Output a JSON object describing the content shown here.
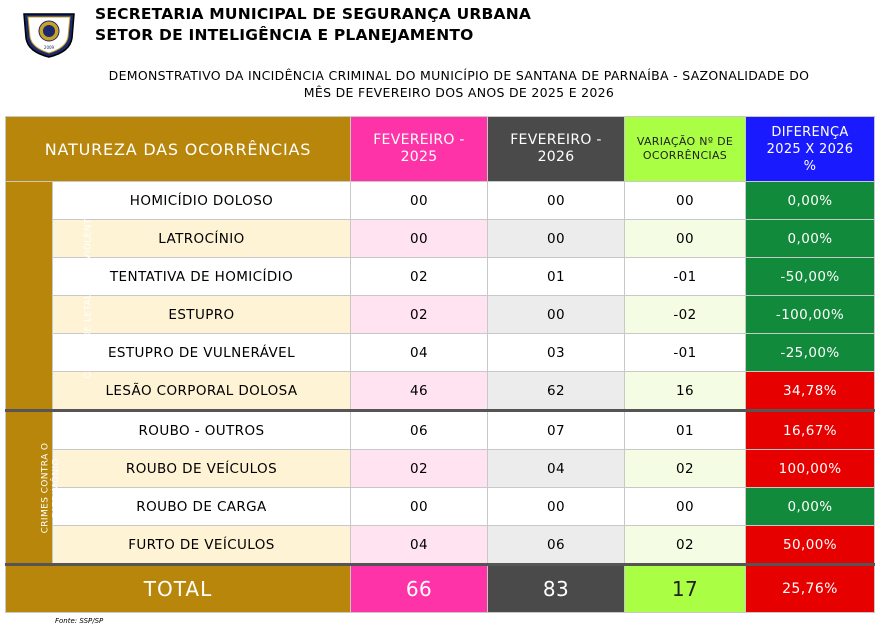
{
  "header": {
    "line1": "SECRETARIA MUNICIPAL DE SEGURANÇA URBANA",
    "line2": "SETOR DE INTELIGÊNCIA E PLANEJAMENTO",
    "logo_year": "2009"
  },
  "subtitle": {
    "line1": "DEMONSTRATIVO DA INCIDÊNCIA CRIMINAL DO MUNICÍPIO DE SANTANA DE PARNAÍBA - SAZONALIDADE DO",
    "line2": "MÊS DE FEVEREIRO DOS ANOS DE 2025 E 2026"
  },
  "columns": {
    "natureza": "NATUREZA DAS OCORRÊNCIAS",
    "feb2025_a": "FEVEREIRO -",
    "feb2025_b": "2025",
    "feb2026_a": "FEVEREIRO -",
    "feb2026_b": "2026",
    "var_a": "VARIAÇÃO Nº DE",
    "var_b": "OCORRÊNCIAS",
    "dif_a": "DIFERENÇA",
    "dif_b": "2025 X 2026",
    "dif_c": "%"
  },
  "groups": {
    "letalidade": "CRIMES DE LETALIDADE VIOLENTA",
    "patrimonio_a": "CRIMES CONTRA O",
    "patrimonio_b": "PATRIMÔNIO"
  },
  "rows": [
    {
      "label": "HOMICÍDIO DOLOSO",
      "y2025": "00",
      "y2026": "00",
      "var": "00",
      "dif": "0,00%"
    },
    {
      "label": "LATROCÍNIO",
      "y2025": "00",
      "y2026": "00",
      "var": "00",
      "dif": "0,00%"
    },
    {
      "label": "TENTATIVA DE HOMICÍDIO",
      "y2025": "02",
      "y2026": "01",
      "var": "-01",
      "dif": "-50,00%"
    },
    {
      "label": "ESTUPRO",
      "y2025": "02",
      "y2026": "00",
      "var": "-02",
      "dif": "-100,00%"
    },
    {
      "label": "ESTUPRO DE VULNERÁVEL",
      "y2025": "04",
      "y2026": "03",
      "var": "-01",
      "dif": "-25,00%"
    },
    {
      "label": "LESÃO CORPORAL DOLOSA",
      "y2025": "46",
      "y2026": "62",
      "var": "16",
      "dif": "34,78%"
    },
    {
      "label": "ROUBO - OUTROS",
      "y2025": "06",
      "y2026": "07",
      "var": "01",
      "dif": "16,67%"
    },
    {
      "label": "ROUBO DE VEÍCULOS",
      "y2025": "02",
      "y2026": "04",
      "var": "02",
      "dif": "100,00%"
    },
    {
      "label": "ROUBO DE CARGA",
      "y2025": "00",
      "y2026": "00",
      "var": "00",
      "dif": "0,00%"
    },
    {
      "label": "FURTO DE VEÍCULOS",
      "y2025": "04",
      "y2026": "06",
      "var": "02",
      "dif": "50,00%"
    }
  ],
  "total": {
    "label": "TOTAL",
    "y2025": "66",
    "y2026": "83",
    "var": "17",
    "dif": "25,76%"
  },
  "source": "Fonte: SSP/SP",
  "colors": {
    "increase": "#e60000",
    "decrease_or_zero": "#128a3c",
    "header_gold": "#b8860b"
  }
}
